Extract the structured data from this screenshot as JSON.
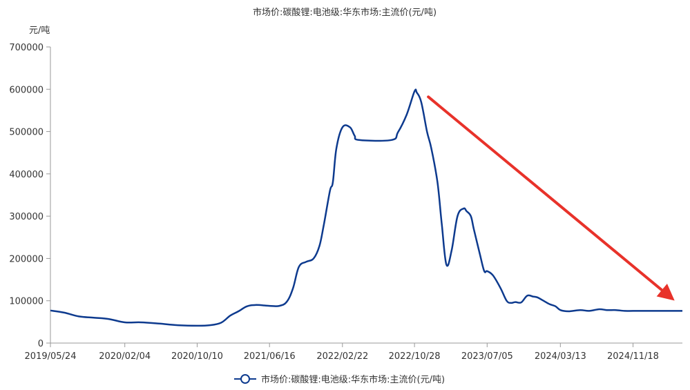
{
  "chart_data": {
    "type": "line",
    "title": "市场价:碳酸锂:电池级:华东市场:主流价(元/吨)",
    "ylabel": "元/吨",
    "ylim": [
      0,
      700000
    ],
    "yticks": [
      "0",
      "100000",
      "200000",
      "300000",
      "400000",
      "500000",
      "600000",
      "700000"
    ],
    "xlim": [
      "2019/05/24",
      "2025/05/07"
    ],
    "xticks": [
      "2019/05/24",
      "2020/02/04",
      "2020/10/10",
      "2021/06/16",
      "2022/02/22",
      "2022/10/28",
      "2023/07/05",
      "2024/03/13",
      "2024/11/18"
    ],
    "grid": false,
    "legend": {
      "position": "bottom-center",
      "marker": "circle-line"
    },
    "accent_color": "#0d3a8e",
    "arrow_color": "#e8322a",
    "series": [
      {
        "name": "市场价:碳酸锂:电池级:华东市场:主流价(元/吨)",
        "x": [
          "2019/05/24",
          "2019/07/10",
          "2019/08/30",
          "2019/10/20",
          "2019/12/10",
          "2020/02/04",
          "2020/03/30",
          "2020/06/01",
          "2020/08/10",
          "2020/10/10",
          "2020/11/20",
          "2020/12/31",
          "2021/02/01",
          "2021/03/01",
          "2021/03/31",
          "2021/05/01",
          "2021/06/16",
          "2021/07/20",
          "2021/08/15",
          "2021/09/05",
          "2021/09/25",
          "2021/10/20",
          "2021/11/15",
          "2021/12/05",
          "2021/12/20",
          "2022/01/10",
          "2022/01/20",
          "2022/02/01",
          "2022/02/22",
          "2022/03/20",
          "2022/04/05",
          "2022/04/20",
          "2022/08/10",
          "2022/09/01",
          "2022/10/01",
          "2022/10/28",
          "2022/11/05",
          "2022/11/20",
          "2022/12/10",
          "2022/12/25",
          "2023/01/15",
          "2023/01/30",
          "2023/02/15",
          "2023/03/05",
          "2023/03/25",
          "2023/04/15",
          "2023/04/25",
          "2023/05/10",
          "2023/05/20",
          "2023/06/10",
          "2023/06/25",
          "2023/07/05",
          "2023/07/25",
          "2023/08/20",
          "2023/09/10",
          "2023/09/25",
          "2023/10/10",
          "2023/10/30",
          "2023/11/20",
          "2023/12/10",
          "2023/12/25",
          "2024/01/15",
          "2024/02/05",
          "2024/02/25",
          "2024/03/13",
          "2024/04/10",
          "2024/05/20",
          "2024/06/20",
          "2024/07/25",
          "2024/08/20",
          "2024/09/20",
          "2024/10/20",
          "2024/11/18",
          "2025/01/10",
          "2025/03/01",
          "2025/05/07"
        ],
        "y": [
          77000,
          72000,
          63000,
          60000,
          57000,
          49000,
          49000,
          46000,
          42000,
          41000,
          42000,
          48000,
          65000,
          75000,
          87000,
          90000,
          88000,
          88000,
          98000,
          130000,
          180000,
          192000,
          200000,
          230000,
          280000,
          360000,
          380000,
          460000,
          510000,
          510000,
          490000,
          480000,
          480000,
          498000,
          540000,
          595000,
          592000,
          570000,
          500000,
          460000,
          380000,
          280000,
          185000,
          220000,
          300000,
          318000,
          312000,
          300000,
          270000,
          210000,
          170000,
          170000,
          160000,
          130000,
          100000,
          95000,
          97000,
          96000,
          112000,
          110000,
          108000,
          100000,
          92000,
          87000,
          78000,
          75000,
          78000,
          76000,
          80000,
          78000,
          78000,
          76000,
          76000,
          76000,
          76000,
          76000
        ]
      }
    ]
  }
}
